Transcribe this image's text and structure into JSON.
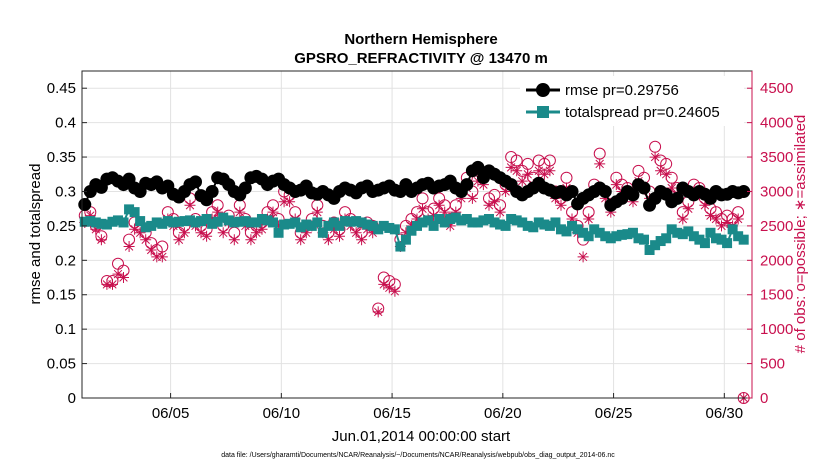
{
  "chart_data": {
    "type": "line",
    "title_lines": [
      "Northern Hemisphere",
      "GPSRO_REFRACTIVITY @ 13470 m"
    ],
    "xlabel": "Jun.01,2014 00:00:00 start",
    "ylabel_left": "rmse and totalspread",
    "ylabel_right": "# of obs: o=possible; ∗=assimilated",
    "footnote": "data file: /Users/gharamti/Documents/NCAR/Reanalysis/~/Documents/NCAR/Reanalysis/webpub/obs_diag_output_2014-06.nc",
    "xlim": [
      1,
      31.25
    ],
    "ylim_left": [
      0,
      0.475
    ],
    "ylim_right": [
      0,
      4750
    ],
    "x_ticks": [
      5,
      10,
      15,
      20,
      25,
      30
    ],
    "x_tick_labels": [
      "06/05",
      "06/10",
      "06/15",
      "06/20",
      "06/25",
      "06/30"
    ],
    "y_ticks_left": [
      0,
      0.05,
      0.1,
      0.15,
      0.2,
      0.25,
      0.3,
      0.35,
      0.4,
      0.45
    ],
    "y_tick_labels_left": [
      "0",
      "0.05",
      "0.1",
      "0.15",
      "0.2",
      "0.25",
      "0.3",
      "0.35",
      "0.4",
      "0.45"
    ],
    "y_ticks_right": [
      0,
      500,
      1000,
      1500,
      2000,
      2500,
      3000,
      3500,
      4000,
      4500
    ],
    "y_tick_labels_right": [
      "0",
      "500",
      "1000",
      "1500",
      "2000",
      "2500",
      "3000",
      "3500",
      "4000",
      "4500"
    ],
    "grid": true,
    "legend_position": "top-right",
    "legend": [
      "rmse pr=0.29756",
      "totalspread pr=0.24605"
    ],
    "colors": {
      "rmse": "#000000",
      "totalspread": "#1a8a8a",
      "obs": "#c8104e",
      "grid": "#e2e2e2"
    },
    "x": [
      1.125,
      1.375,
      1.625,
      1.875,
      2.125,
      2.375,
      2.625,
      2.875,
      3.125,
      3.375,
      3.625,
      3.875,
      4.125,
      4.375,
      4.625,
      4.875,
      5.125,
      5.375,
      5.625,
      5.875,
      6.125,
      6.375,
      6.625,
      6.875,
      7.125,
      7.375,
      7.625,
      7.875,
      8.125,
      8.375,
      8.625,
      8.875,
      9.125,
      9.375,
      9.625,
      9.875,
      10.125,
      10.375,
      10.625,
      10.875,
      11.125,
      11.375,
      11.625,
      11.875,
      12.125,
      12.375,
      12.625,
      12.875,
      13.125,
      13.375,
      13.625,
      13.875,
      14.125,
      14.375,
      14.625,
      14.875,
      15.125,
      15.375,
      15.625,
      15.875,
      16.125,
      16.375,
      16.625,
      16.875,
      17.125,
      17.375,
      17.625,
      17.875,
      18.125,
      18.375,
      18.625,
      18.875,
      19.125,
      19.375,
      19.625,
      19.875,
      20.125,
      20.375,
      20.625,
      20.875,
      21.125,
      21.375,
      21.625,
      21.875,
      22.125,
      22.375,
      22.625,
      22.875,
      23.125,
      23.375,
      23.625,
      23.875,
      24.125,
      24.375,
      24.625,
      24.875,
      25.125,
      25.375,
      25.625,
      25.875,
      26.125,
      26.375,
      26.625,
      26.875,
      27.125,
      27.375,
      27.625,
      27.875,
      28.125,
      28.375,
      28.625,
      28.875,
      29.125,
      29.375,
      29.625,
      29.875,
      30.125,
      30.375,
      30.625,
      30.875
    ],
    "series": [
      {
        "name": "rmse",
        "axis": "left",
        "marker": "filled-circle",
        "values": [
          0.281,
          0.3,
          0.31,
          0.306,
          0.318,
          0.32,
          0.315,
          0.31,
          0.318,
          0.305,
          0.3,
          0.312,
          0.31,
          0.314,
          0.305,
          0.308,
          0.296,
          0.292,
          0.3,
          0.31,
          0.314,
          0.294,
          0.288,
          0.3,
          0.32,
          0.318,
          0.31,
          0.3,
          0.295,
          0.305,
          0.32,
          0.322,
          0.318,
          0.31,
          0.315,
          0.318,
          0.31,
          0.305,
          0.3,
          0.302,
          0.308,
          0.298,
          0.296,
          0.3,
          0.295,
          0.29,
          0.3,
          0.305,
          0.302,
          0.298,
          0.305,
          0.308,
          0.3,
          0.302,
          0.305,
          0.308,
          0.302,
          0.3,
          0.31,
          0.3,
          0.305,
          0.31,
          0.312,
          0.305,
          0.308,
          0.31,
          0.315,
          0.305,
          0.3,
          0.31,
          0.33,
          0.335,
          0.32,
          0.33,
          0.325,
          0.32,
          0.315,
          0.31,
          0.3,
          0.295,
          0.3,
          0.305,
          0.312,
          0.305,
          0.302,
          0.298,
          0.3,
          0.295,
          0.3,
          0.282,
          0.29,
          0.295,
          0.3,
          0.305,
          0.3,
          0.28,
          0.285,
          0.29,
          0.3,
          0.295,
          0.31,
          0.305,
          0.28,
          0.29,
          0.3,
          0.296,
          0.285,
          0.29,
          0.305,
          0.3,
          0.295,
          0.3,
          0.296,
          0.29,
          0.3,
          0.295,
          0.296,
          0.3,
          0.298,
          0.3
        ]
      },
      {
        "name": "totalspread",
        "axis": "left",
        "marker": "filled-square",
        "values": [
          0.256,
          0.257,
          0.255,
          0.253,
          0.252,
          0.256,
          0.258,
          0.255,
          0.274,
          0.27,
          0.257,
          0.248,
          0.25,
          0.255,
          0.253,
          0.257,
          0.255,
          0.256,
          0.257,
          0.258,
          0.255,
          0.257,
          0.26,
          0.253,
          0.256,
          0.262,
          0.258,
          0.255,
          0.256,
          0.257,
          0.255,
          0.255,
          0.26,
          0.258,
          0.255,
          0.24,
          0.252,
          0.253,
          0.255,
          0.248,
          0.252,
          0.25,
          0.255,
          0.24,
          0.25,
          0.255,
          0.25,
          0.257,
          0.256,
          0.257,
          0.255,
          0.252,
          0.25,
          0.245,
          0.25,
          0.247,
          0.245,
          0.22,
          0.23,
          0.243,
          0.25,
          0.255,
          0.258,
          0.25,
          0.26,
          0.255,
          0.26,
          0.262,
          0.258,
          0.26,
          0.255,
          0.255,
          0.258,
          0.26,
          0.255,
          0.252,
          0.25,
          0.26,
          0.258,
          0.255,
          0.25,
          0.248,
          0.255,
          0.252,
          0.25,
          0.255,
          0.245,
          0.242,
          0.25,
          0.245,
          0.24,
          0.235,
          0.245,
          0.24,
          0.235,
          0.232,
          0.235,
          0.237,
          0.238,
          0.24,
          0.232,
          0.23,
          0.215,
          0.222,
          0.228,
          0.232,
          0.245,
          0.24,
          0.238,
          0.242,
          0.235,
          0.23,
          0.225,
          0.24,
          0.232,
          0.23,
          0.225,
          0.245,
          0.235,
          0.23
        ]
      },
      {
        "name": "possible",
        "axis": "right",
        "marker": "open-circle",
        "values": [
          2650,
          2700,
          2500,
          2350,
          1700,
          1700,
          1950,
          1850,
          2300,
          2550,
          2500,
          2400,
          2250,
          2150,
          2200,
          2700,
          2600,
          2400,
          2500,
          2900,
          2600,
          2500,
          2450,
          2700,
          2800,
          2500,
          2650,
          2400,
          2800,
          2600,
          2400,
          2500,
          2550,
          2700,
          2800,
          2600,
          3000,
          2950,
          2700,
          2400,
          2500,
          2600,
          2800,
          2500,
          2400,
          2550,
          2450,
          2700,
          2600,
          2500,
          2400,
          2550,
          2500,
          1300,
          1750,
          1700,
          1650,
          2300,
          2500,
          2600,
          2700,
          2900,
          2700,
          2750,
          2900,
          2800,
          2600,
          2800,
          3000,
          3200,
          3000,
          3300,
          3250,
          2900,
          2950,
          2800,
          3100,
          3500,
          3450,
          3300,
          3400,
          3200,
          3450,
          3400,
          3450,
          3000,
          2900,
          3200,
          2700,
          2500,
          2300,
          2700,
          3100,
          3550,
          3000,
          2800,
          3200,
          3100,
          3050,
          2950,
          3300,
          3200,
          3000,
          3650,
          3450,
          3400,
          3200,
          3050,
          2700,
          2850,
          3100,
          3050,
          2900,
          2750,
          2700,
          2600,
          2650,
          2600,
          2700,
          0
        ]
      },
      {
        "name": "assimilated",
        "axis": "right",
        "marker": "asterisk",
        "values": [
          2550,
          2650,
          2450,
          2300,
          1650,
          1650,
          1800,
          1750,
          2200,
          2450,
          2400,
          2300,
          2150,
          2050,
          2050,
          2600,
          2500,
          2300,
          2400,
          2800,
          2500,
          2400,
          2350,
          2600,
          2700,
          2400,
          2550,
          2300,
          2700,
          2500,
          2300,
          2400,
          2450,
          2600,
          2700,
          2500,
          2850,
          2850,
          2600,
          2300,
          2400,
          2500,
          2700,
          2400,
          2300,
          2450,
          2350,
          2600,
          2500,
          2400,
          2300,
          2450,
          2400,
          1250,
          1650,
          1600,
          1550,
          2200,
          2400,
          2500,
          2600,
          2750,
          2600,
          2650,
          2800,
          2700,
          2500,
          2700,
          2900,
          3050,
          2900,
          3150,
          3100,
          2800,
          2850,
          2700,
          3000,
          3350,
          3300,
          3150,
          3250,
          3100,
          3300,
          3250,
          3300,
          2900,
          2800,
          3050,
          2600,
          2400,
          2050,
          2600,
          3000,
          3400,
          2900,
          2700,
          3100,
          3000,
          2950,
          2850,
          3150,
          3050,
          2900,
          3500,
          3300,
          3250,
          3050,
          2950,
          2600,
          2750,
          3000,
          2950,
          2800,
          2650,
          2600,
          2500,
          2550,
          2500,
          2600,
          0
        ]
      }
    ]
  }
}
